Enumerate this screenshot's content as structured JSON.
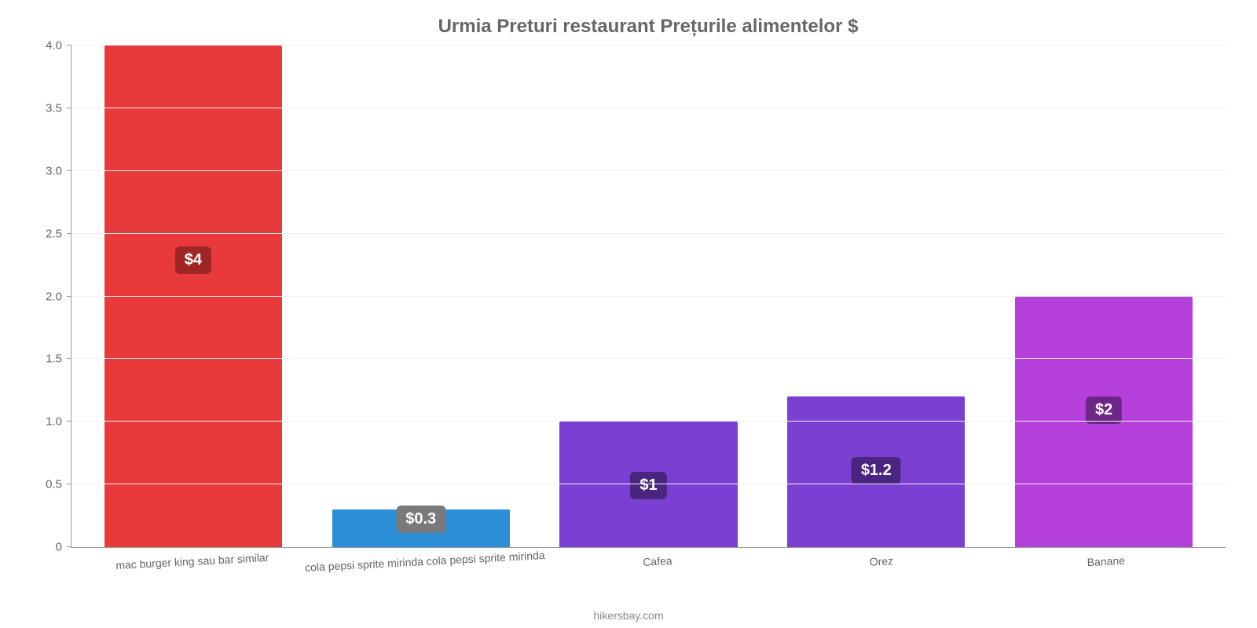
{
  "chart": {
    "type": "bar",
    "title": "Urmia Preturi restaurant Prețurile alimentelor $",
    "title_color": "#666666",
    "title_fontsize": 24,
    "background_color": "#ffffff",
    "grid_color": "#f0f0f0",
    "axis_color": "#999999",
    "tick_color": "#666666",
    "tick_fontsize": 15,
    "xlabel_fontsize": 14,
    "xlabel_rotate_deg": -3,
    "ylim": [
      0,
      4.0
    ],
    "yticks": [
      "0",
      "0.5",
      "1.0",
      "1.5",
      "2.0",
      "2.5",
      "3.0",
      "3.5",
      "4.0"
    ],
    "ytick_values": [
      0,
      0.5,
      1.0,
      1.5,
      2.0,
      2.5,
      3.0,
      3.5,
      4.0
    ],
    "bar_width_pct": 78,
    "categories": [
      "mac burger king sau bar similar",
      "cola pepsi sprite mirinda cola pepsi sprite mirinda",
      "Cafea",
      "Orez",
      "Banane"
    ],
    "values": [
      4.0,
      0.3,
      1.0,
      1.2,
      2.0
    ],
    "value_labels": [
      "$4",
      "$0.3",
      "$1",
      "$1.2",
      "$2"
    ],
    "bar_colors": [
      "#e83a3a",
      "#2a8fd6",
      "#7b3fd3",
      "#7b3fd3",
      "#b540db"
    ],
    "value_label_bg": [
      "#a02626",
      "#7a7a7a",
      "#4a2580",
      "#4a2580",
      "#6e2788"
    ],
    "value_label_color": "#ffffff",
    "value_label_fontsize": 20,
    "value_label_position": [
      "mid",
      "above",
      "mid",
      "mid",
      "mid"
    ],
    "credit": "hikersbay.com",
    "credit_color": "#888888"
  }
}
